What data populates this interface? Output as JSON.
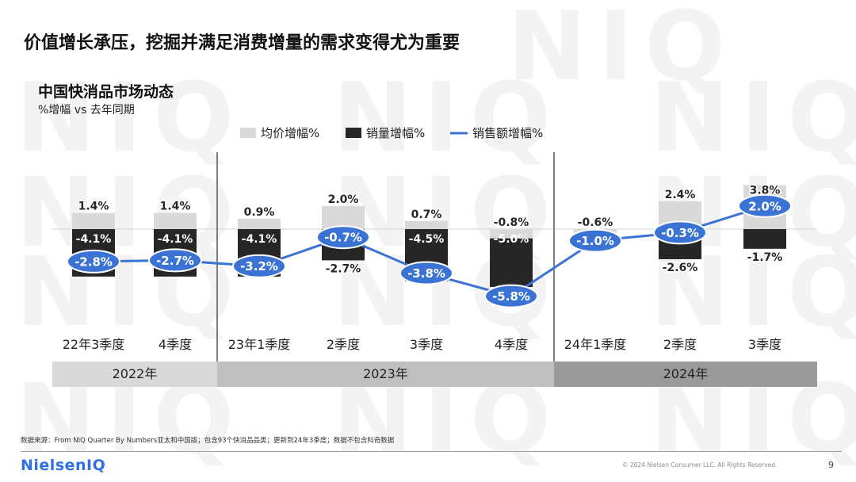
{
  "page": {
    "title": "价值增长承压，挖掘并满足消费增量的需求变得尤为重要",
    "page_number": "9",
    "source_note": "数据来源：From NIQ Quarter By Numbers亚太和中国版；包含93个快消品品类；更新到24年3季度；数据不包含科奇数据",
    "copyright": "© 2024 Nielsen Consumer LLC. All Rights Reserved.",
    "logo_text": "NielsenIQ",
    "watermark_text": "NIQ"
  },
  "colors": {
    "price_bar": "#d9d9d9",
    "volume_bar": "#262626",
    "value_line": "#3a73d4",
    "period_band_2022": "#d9d9d9",
    "period_band_2023": "#bfbfbf",
    "period_band_2024": "#9a9a9a"
  },
  "chart_data": {
    "type": "bar",
    "title": "中国快消品市场动态",
    "subtitle": "%增幅 vs 去年同期",
    "categories": [
      "22年3季度",
      "4季度",
      "23年1季度",
      "2季度",
      "3季度",
      "4季度",
      "24年1季度",
      "2季度",
      "3季度"
    ],
    "periods": [
      {
        "label": "2022年",
        "span": 2
      },
      {
        "label": "2023年",
        "span": 4
      },
      {
        "label": "2024年",
        "span": 3
      }
    ],
    "series": [
      {
        "name": "均价增幅%",
        "kind": "bar",
        "values": [
          1.4,
          1.4,
          0.9,
          2.0,
          0.7,
          -0.8,
          -0.6,
          2.4,
          3.8
        ]
      },
      {
        "name": "销量增幅%",
        "kind": "bar",
        "values": [
          -4.1,
          -4.1,
          -4.1,
          -2.7,
          -4.5,
          -5.0,
          -0.4,
          -2.6,
          -1.7
        ]
      },
      {
        "name": "销售额增幅%",
        "kind": "line",
        "values": [
          -2.8,
          -2.7,
          -3.2,
          -0.7,
          -3.8,
          -5.8,
          -1.0,
          -0.3,
          2.0
        ]
      }
    ],
    "legend": [
      "均价增幅%",
      "销量增幅%",
      "销售额增幅%"
    ],
    "legend_position": "top"
  }
}
